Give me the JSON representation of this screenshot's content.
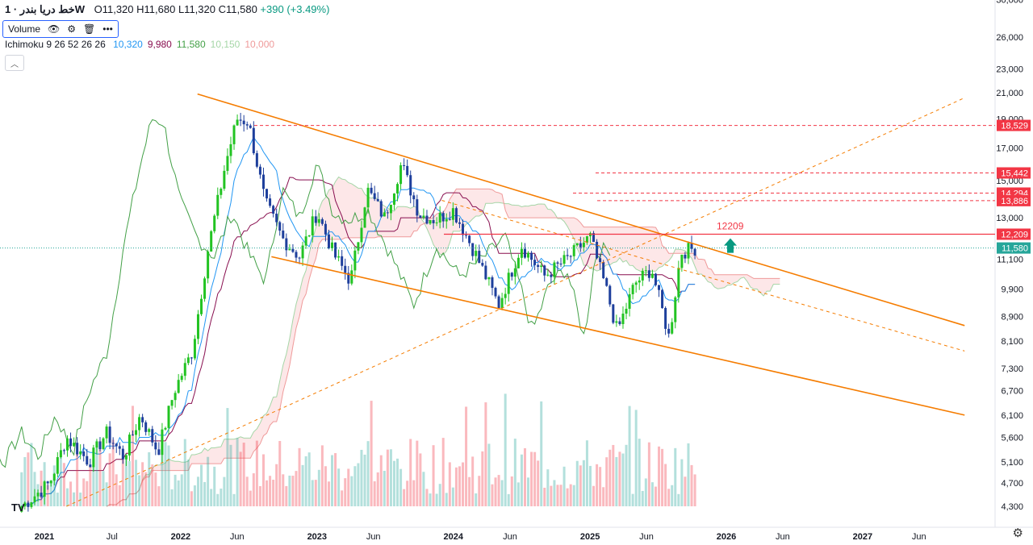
{
  "legend": {
    "symbol": "خط دریا بندر · 1W",
    "open": "O11,320",
    "high": "H11,680",
    "low": "L11,320",
    "close": "C11,580",
    "change": "+390 (+3.49%)"
  },
  "volume_label": "Volume",
  "ichimoku": {
    "label": "Ichimoku 9 26 52 26 26",
    "values": [
      {
        "text": "10,320",
        "color": "#2196f3"
      },
      {
        "text": "9,980",
        "color": "#880e4f"
      },
      {
        "text": "11,580",
        "color": "#43a047"
      },
      {
        "text": "10,150",
        "color": "#a5d6a7"
      },
      {
        "text": "10,000",
        "color": "#ef9a9a"
      }
    ]
  },
  "tv_logo": "TV",
  "chart_data": {
    "type": "candlestick",
    "scale": "log",
    "y_ticks": [
      30000,
      26000,
      23000,
      21000,
      19000,
      17000,
      15000,
      13000,
      11100,
      9900,
      8900,
      8100,
      7300,
      6700,
      6100,
      5600,
      5100,
      4700,
      4300
    ],
    "y_tick_labels": [
      "30,000",
      "26,000",
      "23,000",
      "21,000",
      "19,000",
      "17,000",
      "15,000",
      "13,000",
      "11,100",
      "9,900",
      "8,900",
      "8,100",
      "7,300",
      "6,700",
      "6,100",
      "5,600",
      "5,100",
      "4,700",
      "4,300"
    ],
    "x_ticks": [
      {
        "label": "2021",
        "date": "2021-01-01",
        "bold": true
      },
      {
        "label": "Jul",
        "date": "2021-07-01",
        "bold": false
      },
      {
        "label": "2022",
        "date": "2022-01-01",
        "bold": true
      },
      {
        "label": "Jun",
        "date": "2022-06-01",
        "bold": false
      },
      {
        "label": "2023",
        "date": "2023-01-01",
        "bold": true
      },
      {
        "label": "Jun",
        "date": "2023-06-01",
        "bold": false
      },
      {
        "label": "2024",
        "date": "2024-01-01",
        "bold": true
      },
      {
        "label": "Jun",
        "date": "2024-06-01",
        "bold": false
      },
      {
        "label": "2025",
        "date": "2025-01-01",
        "bold": true
      },
      {
        "label": "Jun",
        "date": "2025-06-01",
        "bold": false
      },
      {
        "label": "2026",
        "date": "2026-01-01",
        "bold": true
      },
      {
        "label": "Jun",
        "date": "2026-06-01",
        "bold": false
      },
      {
        "label": "2027",
        "date": "2027-01-01",
        "bold": true
      },
      {
        "label": "Jun",
        "date": "2027-06-01",
        "bold": false
      }
    ],
    "price_path": [
      [
        "2020-11-01",
        4300
      ],
      [
        "2021-01-15",
        4700
      ],
      [
        "2021-03-01",
        5600
      ],
      [
        "2021-05-01",
        5100
      ],
      [
        "2021-06-15",
        5700
      ],
      [
        "2021-08-01",
        5200
      ],
      [
        "2021-09-15",
        6100
      ],
      [
        "2021-11-01",
        5300
      ],
      [
        "2021-12-15",
        6700
      ],
      [
        "2022-02-01",
        7800
      ],
      [
        "2022-03-15",
        11500
      ],
      [
        "2022-05-01",
        16000
      ],
      [
        "2022-06-01",
        19000
      ],
      [
        "2022-07-01",
        18800
      ],
      [
        "2022-08-15",
        13800
      ],
      [
        "2022-10-01",
        12000
      ],
      [
        "2022-11-15",
        11200
      ],
      [
        "2023-01-01",
        13300
      ],
      [
        "2023-02-15",
        11300
      ],
      [
        "2023-04-01",
        10200
      ],
      [
        "2023-05-15",
        14500
      ],
      [
        "2023-07-01",
        13000
      ],
      [
        "2023-08-15",
        16000
      ],
      [
        "2023-10-01",
        13200
      ],
      [
        "2023-11-15",
        12900
      ],
      [
        "2024-01-01",
        13400
      ],
      [
        "2024-03-01",
        11300
      ],
      [
        "2024-05-01",
        9300
      ],
      [
        "2024-07-01",
        11700
      ],
      [
        "2024-09-01",
        10400
      ],
      [
        "2024-11-01",
        11100
      ],
      [
        "2025-01-01",
        12100
      ],
      [
        "2025-02-15",
        9800
      ],
      [
        "2025-03-15",
        8400
      ],
      [
        "2025-05-01",
        10100
      ],
      [
        "2025-06-15",
        10700
      ],
      [
        "2025-08-01",
        8200
      ],
      [
        "2025-09-01",
        11400
      ],
      [
        "2025-10-15",
        11600
      ]
    ],
    "horizontal_levels": [
      {
        "value": 18529,
        "label": "18,529",
        "style": "dashed",
        "color": "#f23645"
      },
      {
        "value": 15442,
        "label": "15,442",
        "style": "dashed",
        "color": "#f23645"
      },
      {
        "value": 14294,
        "label": "14,294",
        "style": "dashed",
        "color": "#f23645"
      },
      {
        "value": 13886,
        "label": "13,886",
        "style": "dashed",
        "color": "#f23645"
      },
      {
        "value": 12209,
        "label": "12,209",
        "style": "solid",
        "color": "#f23645"
      },
      {
        "value": 11580,
        "label": "11,580",
        "style": "dotted",
        "color": "#26a69a"
      }
    ],
    "annotation": {
      "text": "12209",
      "color": "#f23645"
    },
    "trendlines": [
      {
        "from": [
          "2022-02-15",
          20900
        ],
        "to": [
          "2027-10-01",
          8600
        ],
        "style": "solid",
        "color": "#f57c00"
      },
      {
        "from": [
          "2022-09-01",
          11200
        ],
        "to": [
          "2027-10-01",
          6100
        ],
        "style": "solid",
        "color": "#f57c00"
      },
      {
        "from": [
          "2023-12-01",
          13900
        ],
        "to": [
          "2027-10-01",
          7800
        ],
        "style": "dashed",
        "color": "#f57c00"
      },
      {
        "from": [
          "2021-03-01",
          4300
        ],
        "to": [
          "2027-10-01",
          20600
        ],
        "style": "dashed",
        "color": "#f57c00"
      }
    ],
    "last_price": 11580
  }
}
